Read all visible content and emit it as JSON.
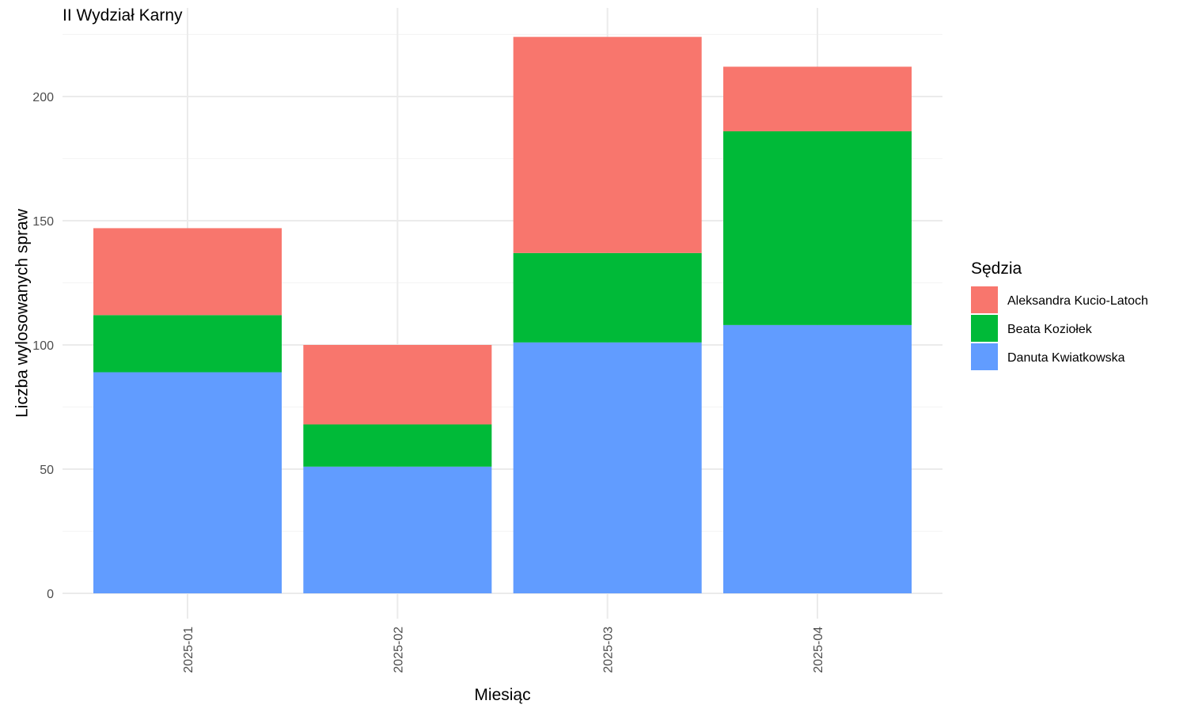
{
  "chart_data": {
    "type": "bar",
    "stacked": true,
    "title": "II Wydział Karny",
    "xlabel": "Miesiąc",
    "ylabel": "Liczba wylosowanych spraw",
    "categories": [
      "2025-01",
      "2025-02",
      "2025-03",
      "2025-04"
    ],
    "ylim": [
      0,
      235
    ],
    "yticks": [
      0,
      50,
      100,
      150,
      200
    ],
    "grid": true,
    "legend": {
      "title": "Sędzia",
      "position": "right"
    },
    "series": [
      {
        "name": "Danuta Kwiatkowska",
        "color": "#619CFF",
        "values": [
          89,
          51,
          101,
          108
        ]
      },
      {
        "name": "Beata Koziołek",
        "color": "#00BA38",
        "values": [
          23,
          17,
          36,
          78
        ]
      },
      {
        "name": "Aleksandra Kucio-Latoch",
        "color": "#F8766D",
        "values": [
          35,
          32,
          87,
          26
        ]
      }
    ]
  }
}
